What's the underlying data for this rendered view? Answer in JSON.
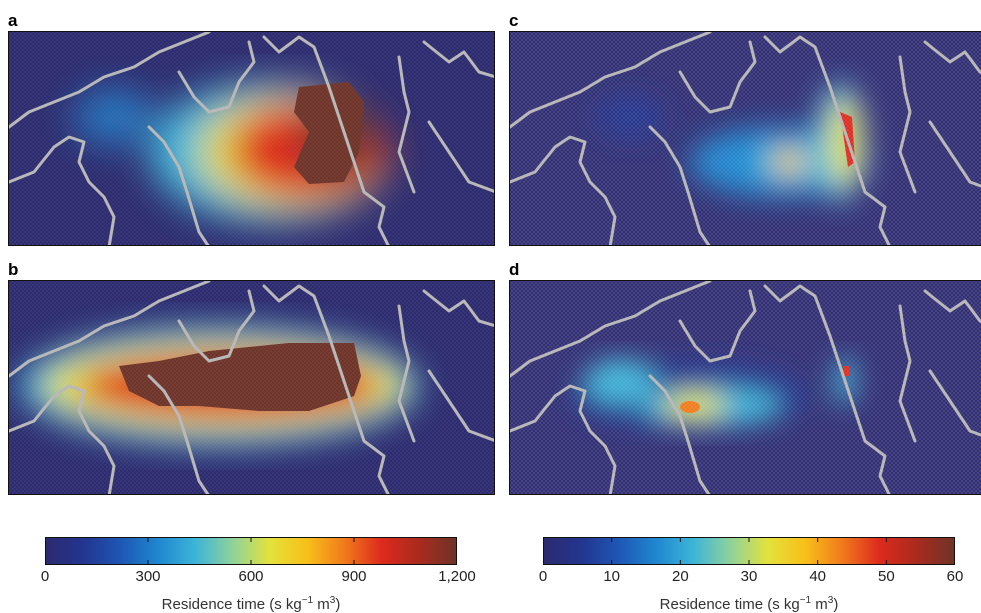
{
  "panels": [
    {
      "label": "a",
      "scale": "left"
    },
    {
      "label": "c",
      "scale": "right"
    },
    {
      "label": "b",
      "scale": "left"
    },
    {
      "label": "d",
      "scale": "right"
    }
  ],
  "colorbars": {
    "left": {
      "ticks": [
        "0",
        "300",
        "600",
        "900",
        "1,200"
      ],
      "tick_values": [
        0,
        300,
        600,
        900,
        1200
      ],
      "range": [
        0,
        1200
      ],
      "title_prefix": "Residence time (s kg",
      "title_exp1": "−1",
      "title_mid": " m",
      "title_exp2": "3",
      "title_suffix": ")"
    },
    "right": {
      "ticks": [
        "0",
        "10",
        "20",
        "30",
        "40",
        "50",
        "60"
      ],
      "tick_values": [
        0,
        10,
        20,
        30,
        40,
        50,
        60
      ],
      "range": [
        0,
        60
      ],
      "title_prefix": "Residence time (s kg",
      "title_exp1": "−1",
      "title_mid": " m",
      "title_exp2": "3",
      "title_suffix": ")"
    }
  },
  "colors": {
    "colormap": [
      "#2c2a6e",
      "#23358f",
      "#1e56b4",
      "#1f86cf",
      "#3cb4d8",
      "#8ed29b",
      "#e3e23c",
      "#f7c019",
      "#f07a1c",
      "#dd2a1d",
      "#a82b1e",
      "#6e3328"
    ],
    "coastline": "#b9b9b9"
  }
}
